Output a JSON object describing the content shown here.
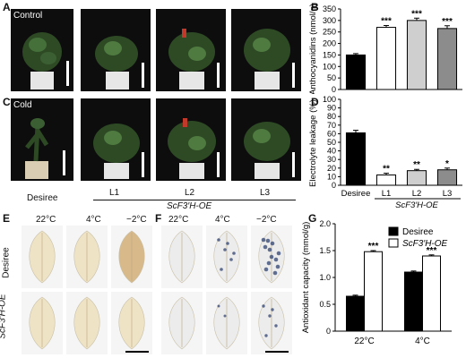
{
  "panels": {
    "A": {
      "letter": "A",
      "condition": "Control"
    },
    "B": {
      "letter": "B"
    },
    "C": {
      "letter": "C",
      "condition": "Cold"
    },
    "D": {
      "letter": "D"
    },
    "E": {
      "letter": "E"
    },
    "F": {
      "letter": "F"
    },
    "G": {
      "letter": "G"
    }
  },
  "plant_row_labels": {
    "desiree": "Desiree",
    "lines": [
      "L1",
      "L2",
      "L3"
    ],
    "oe": "ScF3′H-OE"
  },
  "leaf_panels": {
    "temps": [
      "22°C",
      "4°C",
      "−2°C"
    ],
    "rows": [
      "Desiree",
      "ScF3′H-OE"
    ]
  },
  "colors": {
    "desiree": "#000000",
    "l1": "#ffffff",
    "l2": "#cfcfcf",
    "l3": "#8c8c8c",
    "leaf_E": "#efe3c5",
    "leaf_F": "#ececec"
  },
  "chart_data": [
    {
      "id": "B",
      "type": "bar",
      "categories": [
        "Desiree",
        "L1",
        "L2",
        "L3"
      ],
      "values": [
        150,
        270,
        300,
        265
      ],
      "errors": [
        6,
        8,
        10,
        12
      ],
      "significance": [
        "",
        "***",
        "***",
        "***"
      ],
      "ylabel": "Anthocyanidins (nmol/g)",
      "ylim": [
        0,
        350
      ],
      "yticks": [
        0,
        50,
        100,
        150,
        200,
        250,
        300,
        350
      ]
    },
    {
      "id": "D",
      "type": "bar",
      "categories": [
        "Desiree",
        "L1",
        "L2",
        "L3"
      ],
      "values": [
        61,
        12,
        17,
        18
      ],
      "errors": [
        3,
        2,
        1.5,
        2
      ],
      "significance": [
        "",
        "**",
        "**",
        "*"
      ],
      "ylabel": "Electrolyte leakage (%)",
      "ylim": [
        0,
        100
      ],
      "yticks": [
        0,
        10,
        20,
        30,
        40,
        50,
        60,
        70,
        80,
        90,
        100
      ],
      "group_label": "ScF3′H-OE"
    },
    {
      "id": "G",
      "type": "bar",
      "categories": [
        "22°C",
        "4°C"
      ],
      "series": [
        {
          "name": "Desiree",
          "values": [
            0.65,
            1.1
          ],
          "errors": [
            0.02,
            0.02
          ]
        },
        {
          "name": "ScF3′H-OE",
          "values": [
            1.48,
            1.4
          ],
          "errors": [
            0.02,
            0.02
          ]
        }
      ],
      "significance": [
        "***",
        "***"
      ],
      "ylabel": "Antioxidant capacity (mmol/g)",
      "ylim": [
        0,
        2.0
      ],
      "yticks": [
        "0",
        "0.5",
        "1.0",
        "1.5",
        "2.0"
      ]
    }
  ]
}
